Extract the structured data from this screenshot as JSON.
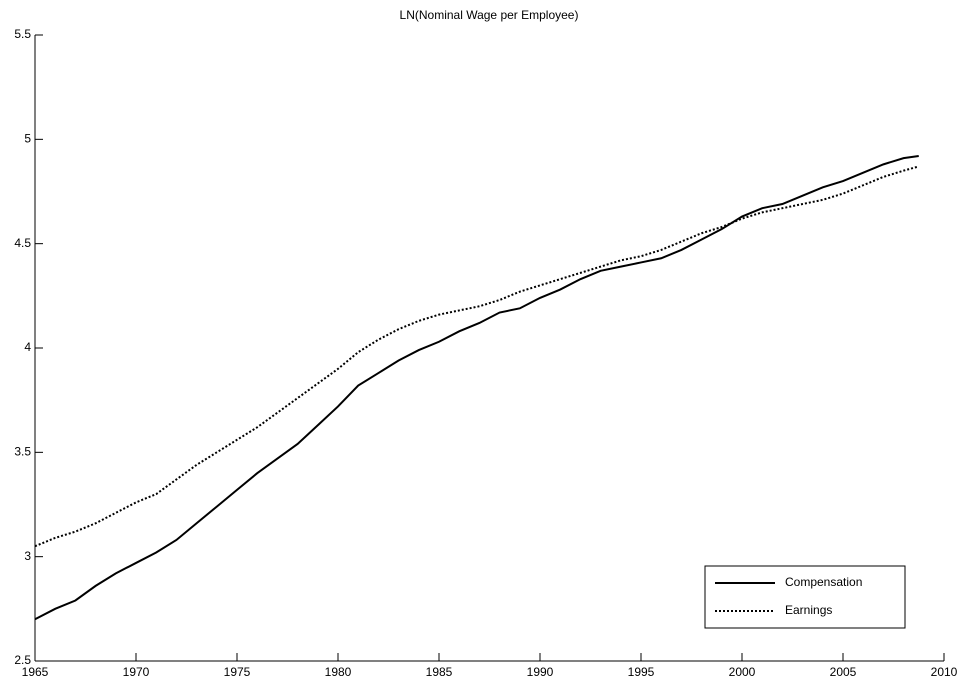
{
  "chart_data": {
    "type": "line",
    "title": "LN(Nominal Wage per Employee)",
    "x": [
      1965,
      1966,
      1967,
      1968,
      1969,
      1970,
      1971,
      1972,
      1973,
      1974,
      1975,
      1976,
      1977,
      1978,
      1979,
      1980,
      1981,
      1982,
      1983,
      1984,
      1985,
      1986,
      1987,
      1988,
      1989,
      1990,
      1991,
      1992,
      1993,
      1994,
      1995,
      1996,
      1997,
      1998,
      1999,
      2000,
      2001,
      2002,
      2003,
      2004,
      2005,
      2006,
      2007,
      2008,
      2008.75
    ],
    "series": [
      {
        "name": "Compensation",
        "color": "#000000",
        "line_style": "solid",
        "values": [
          2.7,
          2.75,
          2.79,
          2.86,
          2.92,
          2.97,
          3.02,
          3.08,
          3.16,
          3.24,
          3.32,
          3.4,
          3.47,
          3.54,
          3.63,
          3.72,
          3.82,
          3.88,
          3.94,
          3.99,
          4.03,
          4.08,
          4.12,
          4.17,
          4.19,
          4.24,
          4.28,
          4.33,
          4.37,
          4.39,
          4.41,
          4.43,
          4.47,
          4.52,
          4.57,
          4.63,
          4.67,
          4.69,
          4.73,
          4.77,
          4.8,
          4.84,
          4.88,
          4.91,
          4.92
        ]
      },
      {
        "name": "Earnings",
        "color": "#000000",
        "line_style": "dotted",
        "values": [
          3.05,
          3.09,
          3.12,
          3.16,
          3.21,
          3.26,
          3.3,
          3.37,
          3.44,
          3.5,
          3.56,
          3.62,
          3.69,
          3.76,
          3.83,
          3.9,
          3.98,
          4.04,
          4.09,
          4.13,
          4.16,
          4.18,
          4.2,
          4.23,
          4.27,
          4.3,
          4.33,
          4.36,
          4.39,
          4.42,
          4.44,
          4.47,
          4.51,
          4.55,
          4.58,
          4.62,
          4.65,
          4.67,
          4.69,
          4.71,
          4.74,
          4.78,
          4.82,
          4.85,
          4.87
        ]
      }
    ],
    "xlim": [
      1965,
      2010
    ],
    "xticks": [
      1965,
      1970,
      1975,
      1980,
      1985,
      1990,
      1995,
      2000,
      2005,
      2010
    ],
    "ylim": [
      2.5,
      5.5
    ],
    "yticks": [
      2.5,
      3,
      3.5,
      4,
      4.5,
      5,
      5.5
    ],
    "grid": false,
    "legend_position": "lower-right"
  }
}
